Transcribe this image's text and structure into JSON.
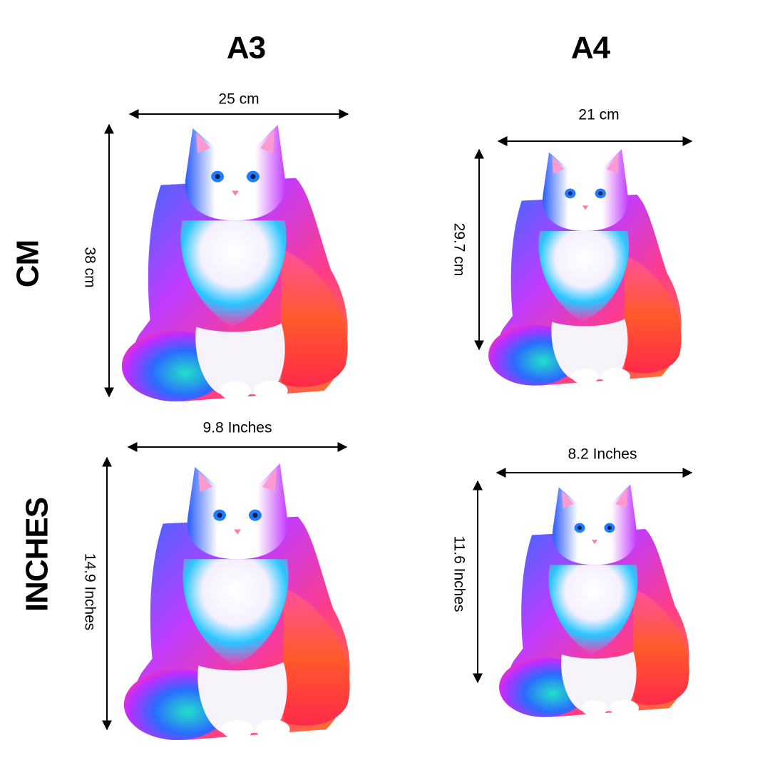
{
  "columns": [
    "A3",
    "A4"
  ],
  "rows": [
    "CM",
    "INCHES"
  ],
  "panels": [
    {
      "width": "25 cm",
      "height": "38 cm"
    },
    {
      "width": "21 cm",
      "height": "29.7 cm"
    },
    {
      "width": "9.8 Inches",
      "height": "14.9 Inches"
    },
    {
      "width": "8.2 Inches",
      "height": "11.6 Inches"
    }
  ]
}
